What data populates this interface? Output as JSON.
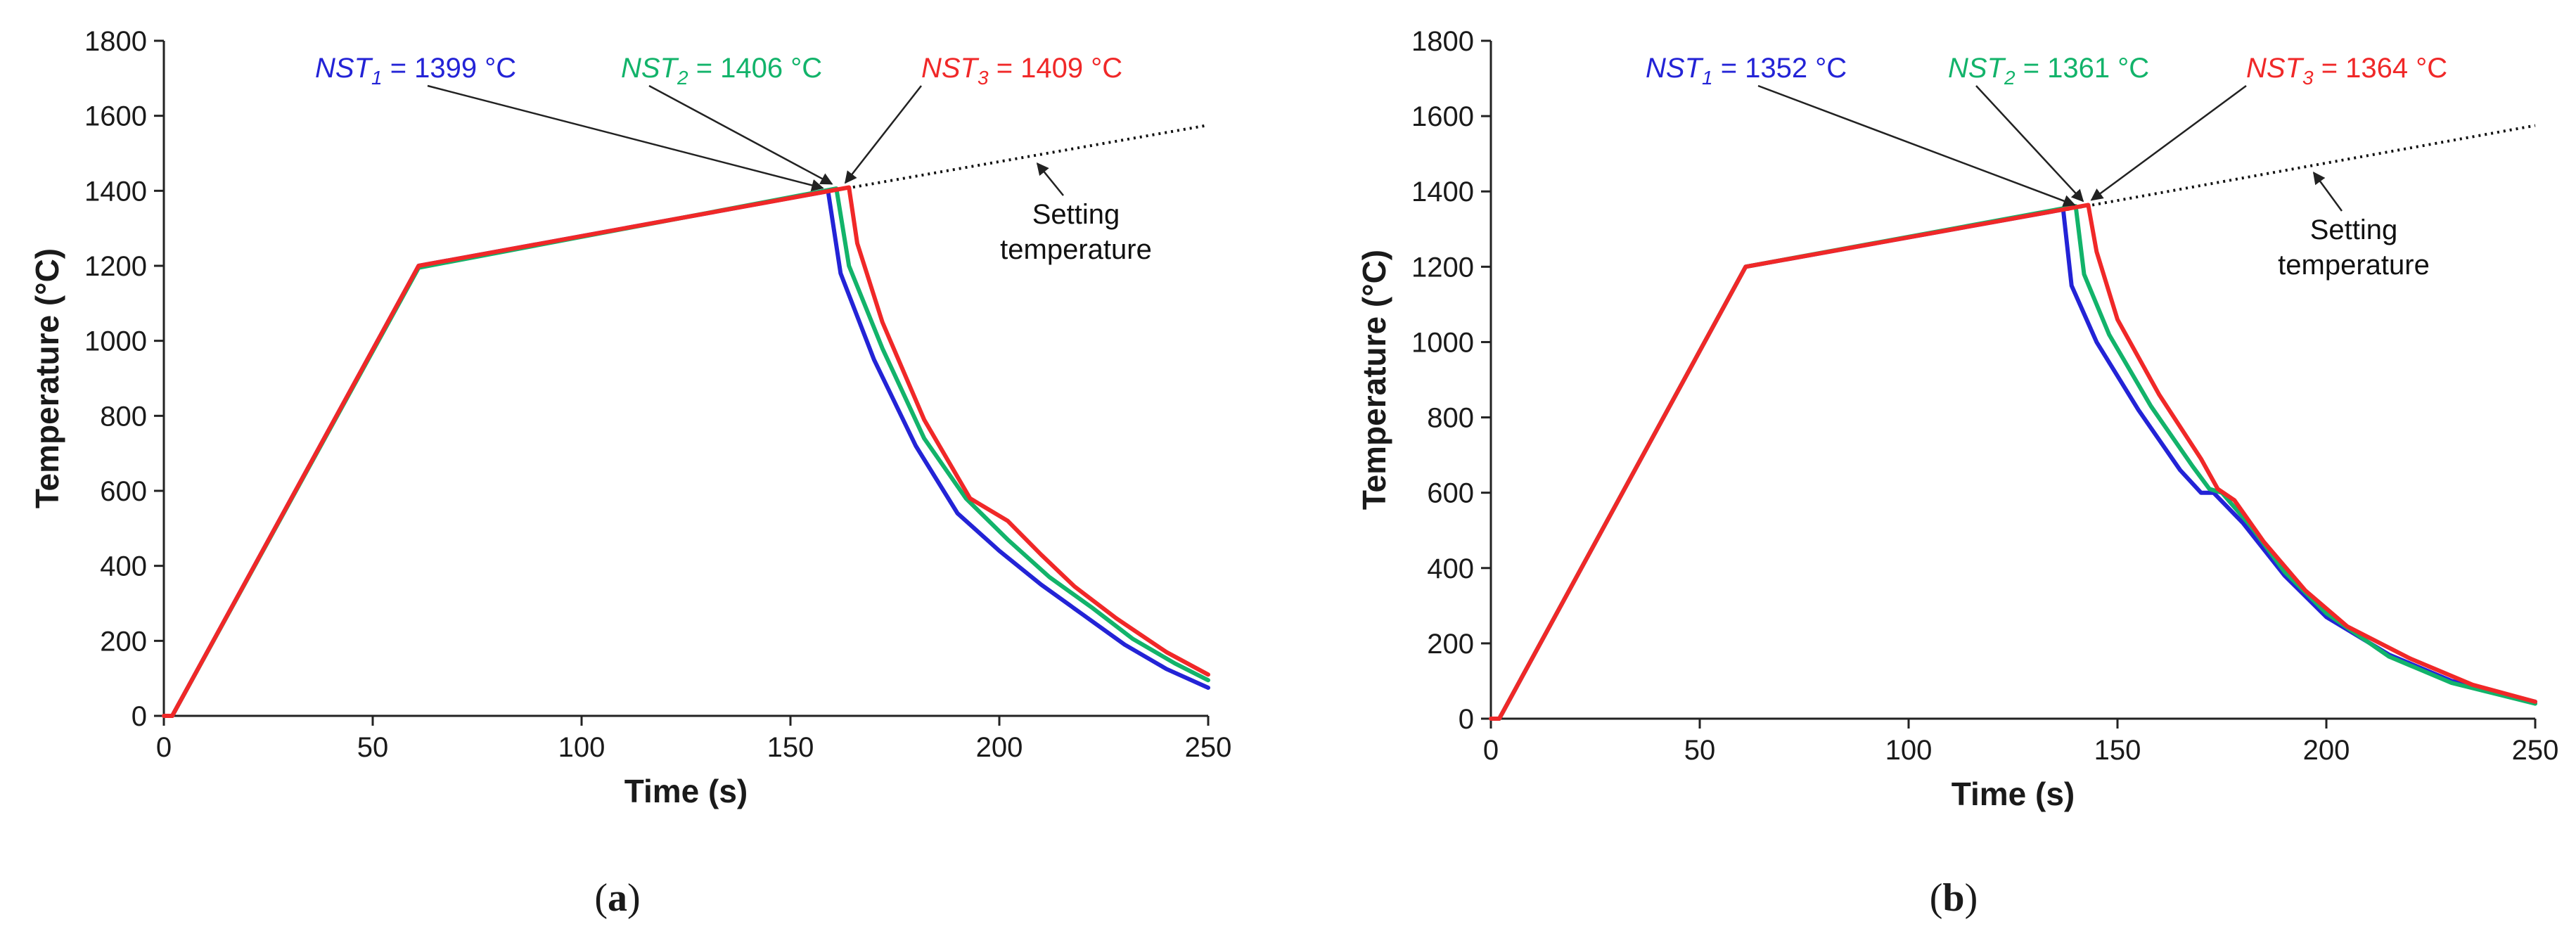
{
  "chart_data": [
    {
      "panel": "a",
      "caption": {
        "open": "(",
        "label": "a",
        "close": ")"
      },
      "type": "line",
      "xlabel": "Time (s)",
      "ylabel": "Temperature (°C)",
      "xlim": [
        0,
        250
      ],
      "ylim": [
        0,
        1800
      ],
      "xticks": [
        0,
        50,
        100,
        150,
        200,
        250
      ],
      "yticks": [
        0,
        200,
        400,
        600,
        800,
        1000,
        1200,
        1400,
        1600,
        1800
      ],
      "grid": false,
      "series": [
        {
          "name": "NST1",
          "color": "#2323d6",
          "x": [
            0,
            2,
            61,
            159,
            162,
            170,
            180,
            190,
            200,
            210,
            220,
            230,
            240,
            250
          ],
          "y": [
            0,
            0,
            1200,
            1399,
            1180,
            950,
            720,
            540,
            440,
            350,
            270,
            190,
            125,
            75
          ]
        },
        {
          "name": "NST2",
          "color": "#12b36a",
          "x": [
            0,
            2,
            61,
            161,
            164,
            172,
            182,
            192,
            202,
            212,
            222,
            232,
            242,
            250
          ],
          "y": [
            0,
            0,
            1195,
            1406,
            1200,
            980,
            740,
            580,
            470,
            370,
            290,
            205,
            140,
            95
          ]
        },
        {
          "name": "NST3",
          "color": "#f02828",
          "x": [
            0,
            2,
            61,
            164,
            166,
            172,
            182,
            193,
            202,
            210,
            218,
            228,
            240,
            250
          ],
          "y": [
            0,
            0,
            1200,
            1409,
            1260,
            1050,
            790,
            580,
            520,
            430,
            345,
            260,
            170,
            110
          ]
        }
      ],
      "setting_line": {
        "x": [
          159,
          250
        ],
        "y": [
          1398,
          1575
        ]
      },
      "annotations": [
        {
          "id": "nst1",
          "text": "NST",
          "sub": "1",
          "value": " = 1399 °C",
          "color": "#2323d6"
        },
        {
          "id": "nst2",
          "text": "NST",
          "sub": "2",
          "value": " = 1406 °C",
          "color": "#12b36a"
        },
        {
          "id": "nst3",
          "text": "NST",
          "sub": "3",
          "value": " = 1409 °C",
          "color": "#f02828"
        }
      ],
      "setting_label": [
        "Setting",
        "temperature"
      ]
    },
    {
      "panel": "b",
      "caption": {
        "open": "(",
        "label": "b",
        "close": ")"
      },
      "type": "line",
      "xlabel": "Time (s)",
      "ylabel": "Temperature (°C)",
      "xlim": [
        0,
        250
      ],
      "ylim": [
        0,
        1800
      ],
      "xticks": [
        0,
        50,
        100,
        150,
        200,
        250
      ],
      "yticks": [
        0,
        200,
        400,
        600,
        800,
        1000,
        1200,
        1400,
        1600,
        1800
      ],
      "grid": false,
      "series": [
        {
          "name": "NST1",
          "color": "#2323d6",
          "x": [
            0,
            2,
            61,
            137,
            139,
            145,
            155,
            165,
            170,
            173,
            180,
            190,
            200,
            215,
            230,
            250
          ],
          "y": [
            0,
            0,
            1200,
            1352,
            1150,
            1000,
            820,
            660,
            600,
            600,
            520,
            380,
            270,
            170,
            100,
            45
          ]
        },
        {
          "name": "NST2",
          "color": "#12b36a",
          "x": [
            0,
            2,
            61,
            140,
            142,
            148,
            158,
            168,
            172,
            175,
            182,
            190,
            200,
            215,
            230,
            250
          ],
          "y": [
            0,
            0,
            1200,
            1361,
            1180,
            1020,
            830,
            670,
            610,
            600,
            510,
            390,
            280,
            165,
            95,
            40
          ]
        },
        {
          "name": "NST3",
          "color": "#f02828",
          "x": [
            0,
            2,
            61,
            143,
            145,
            150,
            160,
            170,
            174,
            178,
            185,
            195,
            205,
            220,
            235,
            250
          ],
          "y": [
            0,
            0,
            1200,
            1364,
            1240,
            1060,
            860,
            690,
            610,
            580,
            470,
            340,
            245,
            160,
            90,
            45
          ]
        }
      ],
      "setting_line": {
        "x": [
          138,
          250
        ],
        "y": [
          1352,
          1575
        ]
      },
      "annotations": [
        {
          "id": "nst1",
          "text": "NST",
          "sub": "1",
          "value": " = 1352 °C",
          "color": "#2323d6"
        },
        {
          "id": "nst2",
          "text": "NST",
          "sub": "2",
          "value": " = 1361 °C",
          "color": "#12b36a"
        },
        {
          "id": "nst3",
          "text": "NST",
          "sub": "3",
          "value": " = 1364 °C",
          "color": "#f02828"
        }
      ],
      "setting_label": [
        "Setting",
        "temperature"
      ]
    }
  ]
}
